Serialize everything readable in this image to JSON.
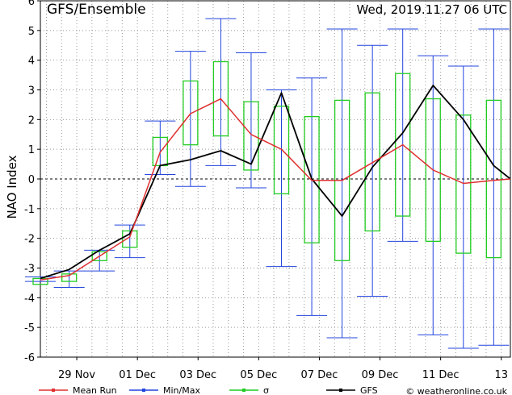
{
  "header": {
    "title": "GFS/Ensemble",
    "timestamp": "Wed, 2019.11.27   06 UTC"
  },
  "footer": {
    "legend": [
      {
        "key": "mean",
        "label": "Mean Run",
        "color": "#e03030"
      },
      {
        "key": "minmax",
        "label": "Min/Max",
        "color": "#2244dd"
      },
      {
        "key": "sigma",
        "label": "σ",
        "color": "#22cc22"
      },
      {
        "key": "gfs",
        "label": "GFS",
        "color": "#000000"
      }
    ],
    "credit": "© weatheronline.co.uk"
  },
  "chart_data": {
    "type": "line",
    "ylabel": "NAO Index",
    "ylim": [
      -6,
      6
    ],
    "yticks": [
      -6,
      -5,
      -4,
      -3,
      -2,
      -1,
      0,
      1,
      2,
      3,
      4,
      5,
      6
    ],
    "xticks": [
      {
        "t": 1,
        "label": "29 Nov"
      },
      {
        "t": 3,
        "label": "01 Dec"
      },
      {
        "t": 5,
        "label": "03 Dec"
      },
      {
        "t": 7,
        "label": "05 Dec"
      },
      {
        "t": 9,
        "label": "07 Dec"
      },
      {
        "t": 11,
        "label": "09 Dec"
      },
      {
        "t": 13,
        "label": "11 Dec"
      },
      {
        "t": 15,
        "label": "13"
      }
    ],
    "xlim": [
      -0.2,
      15.3
    ],
    "grid": true,
    "t": [
      0,
      0.5,
      1,
      1.5,
      2,
      2.5,
      3,
      3.5,
      4,
      4.5,
      5,
      5.5,
      6,
      6.5,
      7,
      7.5,
      8,
      8.5,
      9,
      9.5,
      10,
      10.5,
      11,
      11.5,
      12,
      12.5,
      13,
      13.5,
      14,
      14.5,
      15,
      15.3
    ],
    "series": [
      {
        "key": "gfs",
        "name": "GFS",
        "color": "#000000",
        "points": [
          [
            -0.2,
            -3.35
          ],
          [
            0.75,
            -3.05
          ],
          [
            1.75,
            -2.4
          ],
          [
            2.75,
            -1.85
          ],
          [
            3.75,
            0.45
          ],
          [
            4.75,
            0.65
          ],
          [
            5.75,
            0.95
          ],
          [
            6.75,
            0.5
          ],
          [
            7.75,
            2.9
          ],
          [
            8.75,
            0.0
          ],
          [
            9.75,
            -1.25
          ],
          [
            10.75,
            0.4
          ],
          [
            11.75,
            1.55
          ],
          [
            12.75,
            3.15
          ],
          [
            13.75,
            2.0
          ],
          [
            14.75,
            0.45
          ],
          [
            15.3,
            0.0
          ]
        ]
      },
      {
        "key": "mean",
        "name": "Mean Run",
        "color": "#e03030",
        "points": [
          [
            -0.2,
            -3.4
          ],
          [
            0.75,
            -3.25
          ],
          [
            1.75,
            -2.6
          ],
          [
            2.75,
            -1.95
          ],
          [
            3.75,
            0.9
          ],
          [
            4.75,
            2.2
          ],
          [
            5.75,
            2.7
          ],
          [
            6.75,
            1.5
          ],
          [
            7.75,
            1.0
          ],
          [
            8.75,
            -0.05
          ],
          [
            9.75,
            -0.05
          ],
          [
            10.75,
            0.55
          ],
          [
            11.75,
            1.15
          ],
          [
            12.75,
            0.3
          ],
          [
            13.75,
            -0.15
          ],
          [
            14.75,
            -0.05
          ],
          [
            15.3,
            0.0
          ]
        ]
      }
    ],
    "boxes": [
      {
        "t": -0.2,
        "min": -3.45,
        "max": -3.3,
        "sigma_low": -3.55,
        "sigma_high": -3.35
      },
      {
        "t": 0.75,
        "min": -3.65,
        "max": -3.1,
        "sigma_low": -3.45,
        "sigma_high": -3.2
      },
      {
        "t": 1.75,
        "min": -3.1,
        "max": -2.4,
        "sigma_low": -2.75,
        "sigma_high": -2.45
      },
      {
        "t": 2.75,
        "min": -2.65,
        "max": -1.55,
        "sigma_low": -2.3,
        "sigma_high": -1.75
      },
      {
        "t": 3.75,
        "min": 0.15,
        "max": 1.95,
        "sigma_low": 0.45,
        "sigma_high": 1.4
      },
      {
        "t": 4.75,
        "min": -0.25,
        "max": 4.3,
        "sigma_low": 1.15,
        "sigma_high": 3.3
      },
      {
        "t": 5.75,
        "min": 0.45,
        "max": 5.4,
        "sigma_low": 1.45,
        "sigma_high": 3.95
      },
      {
        "t": 6.75,
        "min": -0.3,
        "max": 4.25,
        "sigma_low": 0.3,
        "sigma_high": 2.6
      },
      {
        "t": 7.75,
        "min": -2.95,
        "max": 3.0,
        "sigma_low": -0.5,
        "sigma_high": 2.45
      },
      {
        "t": 8.75,
        "min": -4.6,
        "max": 3.4,
        "sigma_low": -2.15,
        "sigma_high": 2.1
      },
      {
        "t": 9.75,
        "min": -5.35,
        "max": 5.05,
        "sigma_low": -2.75,
        "sigma_high": 2.65
      },
      {
        "t": 10.75,
        "min": -3.95,
        "max": 4.5,
        "sigma_low": -1.75,
        "sigma_high": 2.9
      },
      {
        "t": 11.75,
        "min": -2.1,
        "max": 5.05,
        "sigma_low": -1.25,
        "sigma_high": 3.55
      },
      {
        "t": 12.75,
        "min": -5.25,
        "max": 4.15,
        "sigma_low": -2.1,
        "sigma_high": 2.7
      },
      {
        "t": 13.75,
        "min": -5.7,
        "max": 3.8,
        "sigma_low": -2.5,
        "sigma_high": 2.15
      },
      {
        "t": 14.75,
        "min": -5.6,
        "max": 5.05,
        "sigma_low": -2.65,
        "sigma_high": 2.65
      }
    ]
  }
}
